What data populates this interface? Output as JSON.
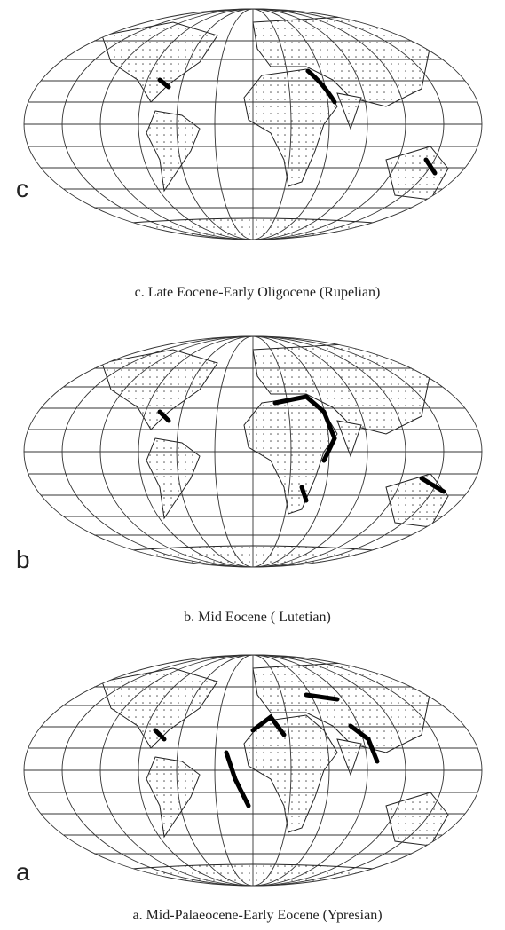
{
  "panels": [
    {
      "letter": "c",
      "caption": "c. Late Eocene-Early Oligocene (Rupelian)"
    },
    {
      "letter": "b",
      "caption": "b. Mid Eocene ( Lutetian)"
    },
    {
      "letter": "a",
      "caption": "a. Mid-Palaeocene-Early Eocene (Ypresian)"
    }
  ]
}
